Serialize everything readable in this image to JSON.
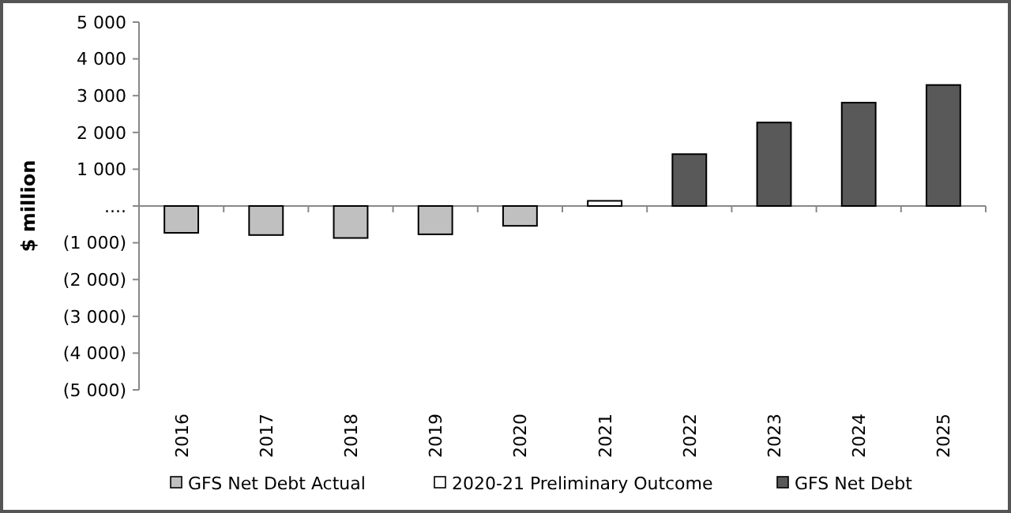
{
  "chart_data": {
    "type": "bar",
    "ylabel": "$ million",
    "categories": [
      "2016",
      "2017",
      "2018",
      "2019",
      "2020",
      "2021",
      "2022",
      "2023",
      "2024",
      "2025"
    ],
    "series": [
      {
        "name": "GFS Net Debt Actual",
        "color": "#c0c0c0",
        "values": [
          -730,
          -790,
          -870,
          -770,
          -540,
          null,
          null,
          null,
          null,
          null
        ]
      },
      {
        "name": "2020-21 Preliminary Outcome",
        "color": "#ffffff",
        "values": [
          null,
          null,
          null,
          null,
          null,
          140,
          null,
          null,
          null,
          null
        ]
      },
      {
        "name": "GFS Net Debt",
        "color": "#595959",
        "values": [
          null,
          null,
          null,
          null,
          null,
          null,
          1410,
          2270,
          2810,
          3290
        ]
      }
    ],
    "ylim": [
      -5000,
      5000
    ],
    "yticks": [
      {
        "value": -5000,
        "label": "(5 000)"
      },
      {
        "value": -4000,
        "label": "(4 000)"
      },
      {
        "value": -3000,
        "label": "(3 000)"
      },
      {
        "value": -2000,
        "label": "(2 000)"
      },
      {
        "value": -1000,
        "label": "(1 000)"
      },
      {
        "value": 0,
        "label": "...."
      },
      {
        "value": 1000,
        "label": "1 000"
      },
      {
        "value": 2000,
        "label": "2 000"
      },
      {
        "value": 3000,
        "label": "3 000"
      },
      {
        "value": 4000,
        "label": "4 000"
      },
      {
        "value": 5000,
        "label": "5 000"
      }
    ],
    "legend": "bottom"
  }
}
